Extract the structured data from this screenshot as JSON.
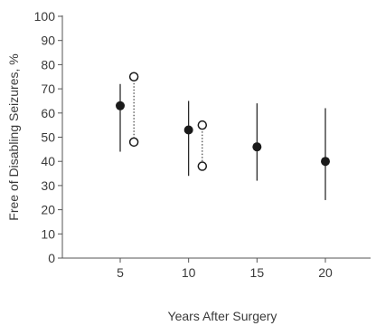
{
  "chart_data": {
    "type": "scatter",
    "xlabel": "Years After Surgery",
    "ylabel": "Free of Disabling Seizures, %",
    "xlim": [
      0,
      24
    ],
    "ylim": [
      0,
      100
    ],
    "xticks": [
      5,
      10,
      15,
      20
    ],
    "yticks": [
      0,
      10,
      20,
      30,
      40,
      50,
      60,
      70,
      80,
      90,
      100
    ],
    "grid": false,
    "series": [
      {
        "marker": "filled-circle",
        "points": [
          {
            "x": 5,
            "y": 63,
            "low": 44,
            "high": 72
          },
          {
            "x": 10,
            "y": 53,
            "low": 34,
            "high": 65
          },
          {
            "x": 15,
            "y": 46,
            "low": 32,
            "high": 64
          },
          {
            "x": 20,
            "y": 40,
            "low": 24,
            "high": 62
          }
        ]
      },
      {
        "marker": "open-circle",
        "points": [
          {
            "x": 6,
            "y_upper": 75,
            "y_lower": 48
          },
          {
            "x": 11,
            "y_upper": 55,
            "y_lower": 38
          }
        ]
      }
    ],
    "colors": {
      "ink": "#1a1a1a",
      "axis": "#555555",
      "text": "#3a3a3a"
    }
  }
}
